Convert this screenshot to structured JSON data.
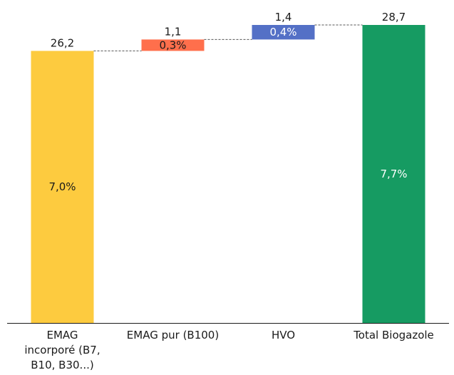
{
  "chart_data": {
    "type": "bar",
    "subtype": "waterfall",
    "title": "",
    "xlabel": "",
    "ylabel": "",
    "ylim": [
      0,
      28.7
    ],
    "grid": false,
    "legend": "none",
    "categories": [
      "EMAG incorporé (B7, B10, B30...)",
      "EMAG pur (B100)",
      "HVO",
      "Total Biogazole"
    ],
    "category_lines": [
      [
        "EMAG",
        "incorporé (B7,",
        "B10, B30...)"
      ],
      [
        "EMAG pur (B100)"
      ],
      [
        "HVO"
      ],
      [
        "Total Biogazole"
      ]
    ],
    "values": [
      26.2,
      1.1,
      1.4,
      28.7
    ],
    "bar_kind": [
      "absolute",
      "delta",
      "delta",
      "total"
    ],
    "value_labels": [
      "26,2",
      "1,1",
      "1,4",
      "28,7"
    ],
    "share_labels": [
      "7,0%",
      "0,3%",
      "0,4%",
      "7,7%"
    ],
    "colors": [
      "#FDCB3F",
      "#FF6F4C",
      "#5470C6",
      "#169B62"
    ],
    "share_label_colors": [
      "#1a1a1a",
      "#1a1a1a",
      "#ffffff",
      "#ffffff"
    ],
    "connector_color": "#555555",
    "axis_color": "#1a1a1a"
  }
}
